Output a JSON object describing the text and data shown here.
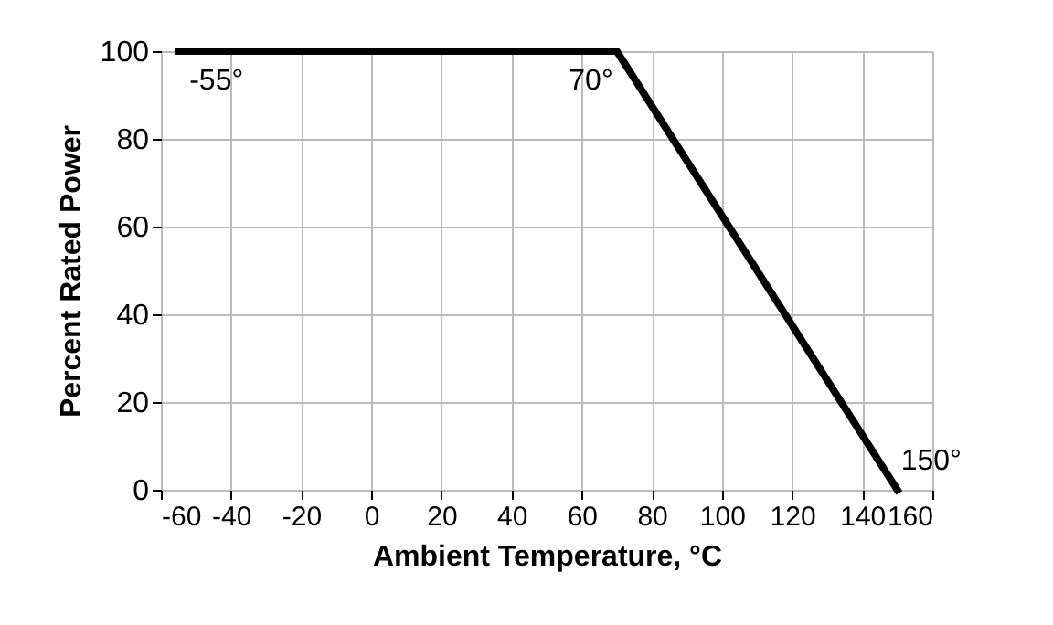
{
  "chart_data": {
    "type": "line",
    "xlabel": "Ambient Temperature, °C",
    "ylabel": "Percent Rated Power",
    "x": [
      -55,
      70,
      150
    ],
    "series": [
      {
        "color": "#000000",
        "values": [
          100,
          100,
          0
        ]
      }
    ],
    "xlim": [
      -60,
      160
    ],
    "xticks": [
      -60,
      -40,
      -20,
      0,
      20,
      40,
      60,
      80,
      100,
      120,
      140,
      160
    ],
    "ylim": [
      0,
      100
    ],
    "yticks": [
      0,
      20,
      40,
      60,
      80,
      100
    ],
    "grid": true,
    "legend": false,
    "marker": "none",
    "line_style": "solid",
    "annotations": [
      {
        "text": "-55°",
        "x": -55,
        "y": 100
      },
      {
        "text": "70°",
        "x": 70,
        "y": 100
      },
      {
        "text": "150°",
        "x": 150,
        "y": 0
      }
    ]
  }
}
